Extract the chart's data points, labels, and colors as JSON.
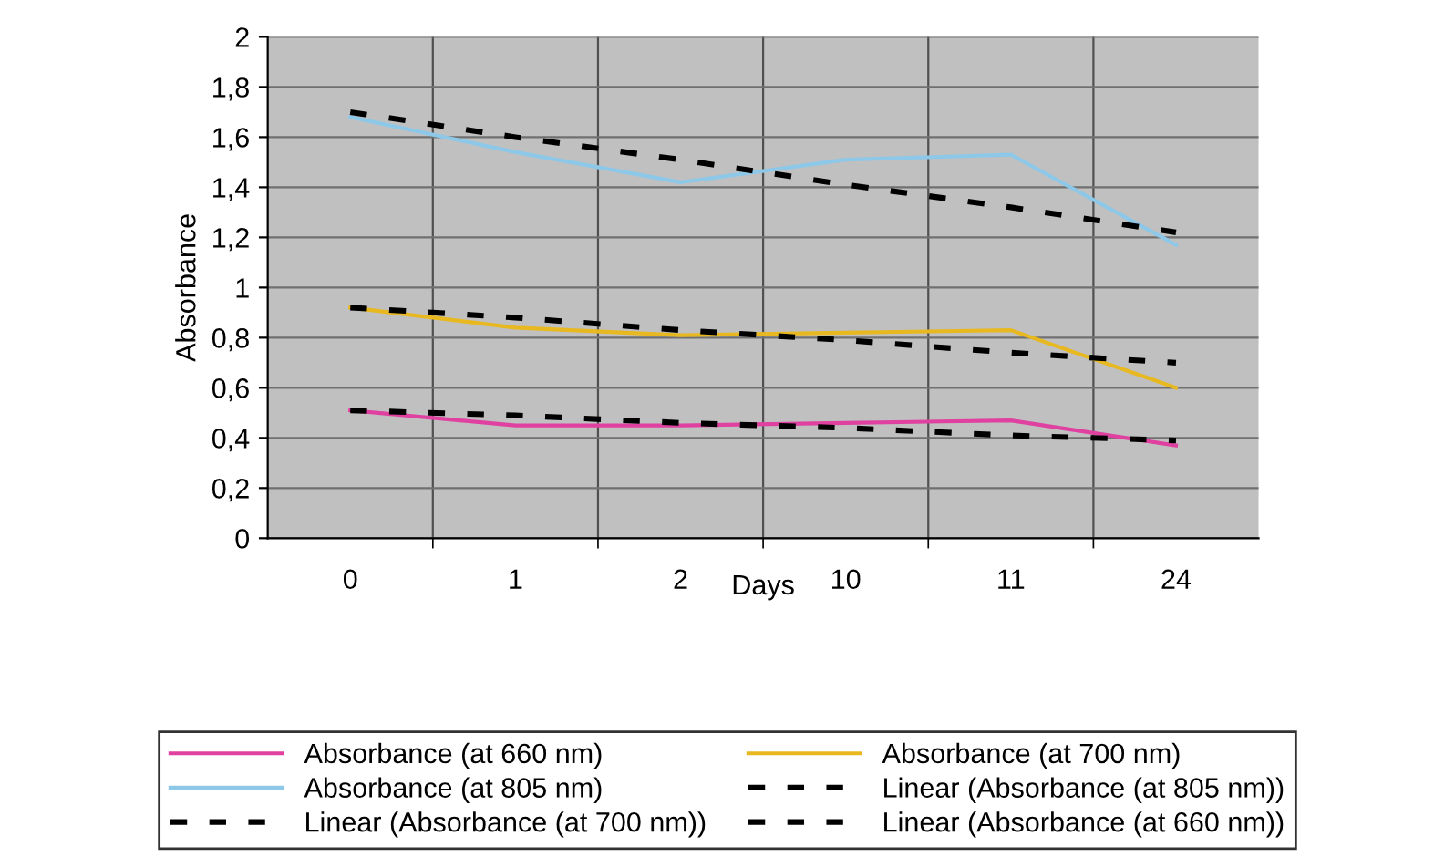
{
  "chart_data": {
    "type": "line",
    "xlabel": "Days",
    "ylabel": "Absorbance",
    "categories": [
      "0",
      "1",
      "2",
      "10",
      "11",
      "24"
    ],
    "series": [
      {
        "name": "Absorbance (at 660 nm)",
        "color": "#e040a0",
        "line_style": "solid",
        "values": [
          0.51,
          0.45,
          0.45,
          0.46,
          0.47,
          0.37
        ]
      },
      {
        "name": "Absorbance (at 700 nm)",
        "color": "#e8b820",
        "line_style": "solid",
        "values": [
          0.92,
          0.84,
          0.81,
          0.82,
          0.83,
          0.6
        ]
      },
      {
        "name": "Absorbance (at 805 nm)",
        "color": "#8ec8e8",
        "line_style": "solid",
        "values": [
          1.68,
          1.54,
          1.42,
          1.51,
          1.53,
          1.17
        ]
      },
      {
        "name": "Linear (Absorbance (at 805 nm))",
        "color": "#000000",
        "line_style": "dashed",
        "values": [
          1.7,
          1.6,
          1.51,
          1.41,
          1.32,
          1.22
        ]
      },
      {
        "name": "Linear (Absorbance (at 700 nm))",
        "color": "#000000",
        "line_style": "dashed",
        "values": [
          0.92,
          0.88,
          0.83,
          0.79,
          0.74,
          0.7
        ]
      },
      {
        "name": "Linear (Absorbance (at 660 nm))",
        "color": "#000000",
        "line_style": "dashed",
        "values": [
          0.51,
          0.49,
          0.46,
          0.44,
          0.41,
          0.39
        ]
      }
    ],
    "ylim": [
      0,
      2
    ],
    "yticks": [
      0,
      {
        "value": 0.2,
        "label": "0,2"
      },
      {
        "value": 0.4,
        "label": "0,4"
      },
      {
        "value": 0.6,
        "label": "0,6"
      },
      {
        "value": 0.8,
        "label": "0,8"
      },
      1,
      {
        "value": 1.2,
        "label": "1,2"
      },
      {
        "value": 1.4,
        "label": "1,4"
      },
      {
        "value": 1.6,
        "label": "1,6"
      },
      {
        "value": 1.8,
        "label": "1,8"
      },
      2
    ],
    "grid": true,
    "legend": "bottom",
    "marker": "none"
  }
}
